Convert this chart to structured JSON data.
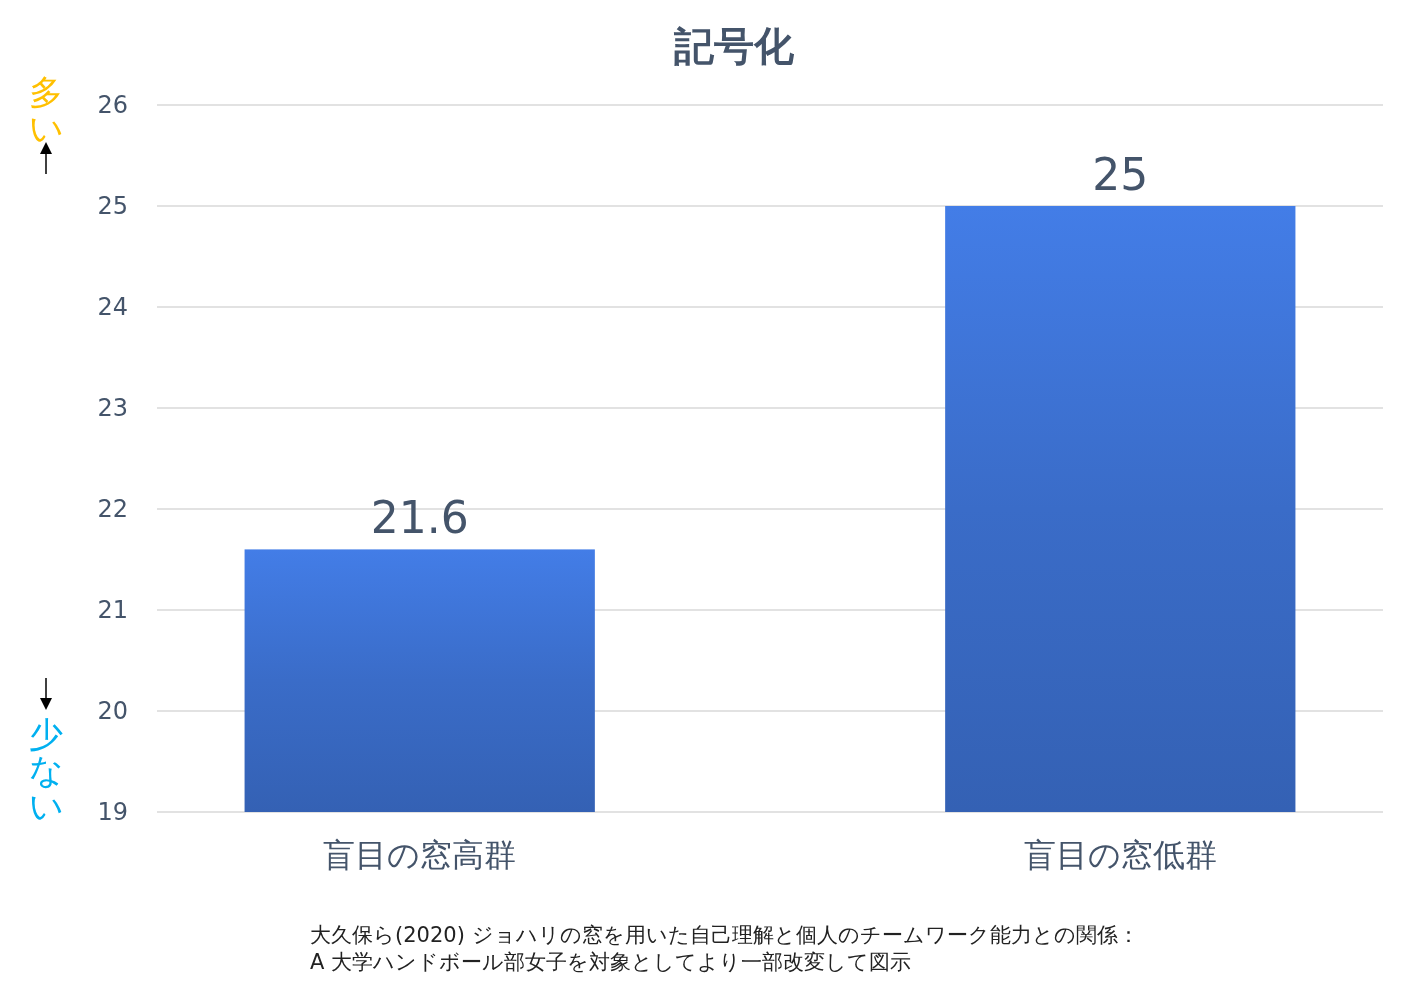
{
  "chart_data": {
    "type": "bar",
    "title": "記号化",
    "categories": [
      "盲目の窓高群",
      "盲目の窓低群"
    ],
    "values": [
      21.6,
      25
    ],
    "color": "#3a6cc8",
    "ylim": [
      19,
      26
    ],
    "yticks": [
      19,
      20,
      21,
      22,
      23,
      24,
      25,
      26
    ],
    "grid": "y",
    "data_labels": true,
    "annotations": [
      "多い",
      "少ない",
      "大久保ら(2020) ジョハリの窓を用いた自己理解と個人のチームワーク能力との関係：",
      "A 大学ハンドボール部女子を対象としてより一部改変して図示"
    ]
  }
}
